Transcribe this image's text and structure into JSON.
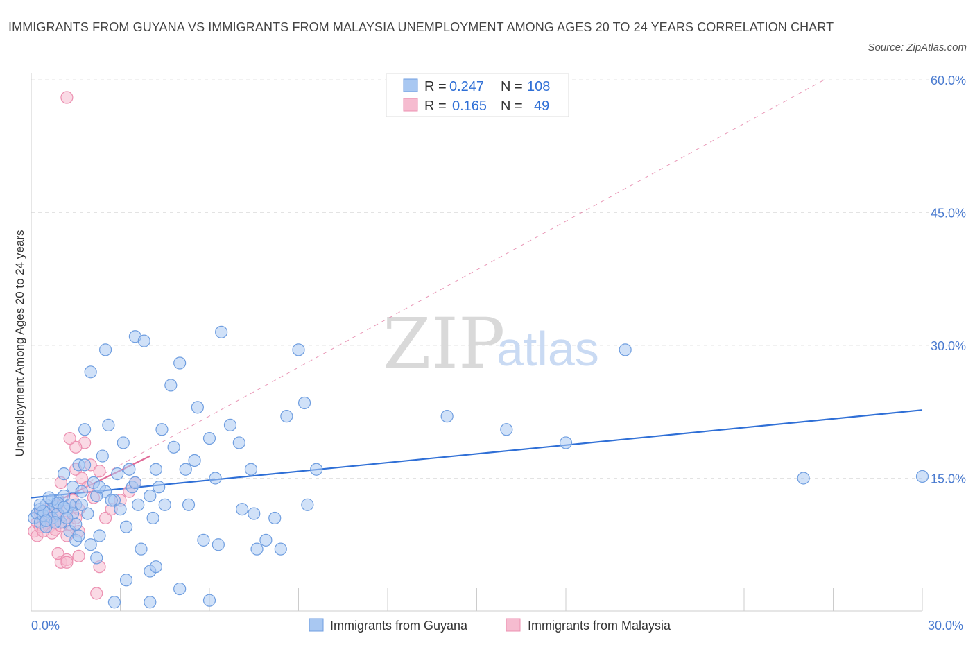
{
  "title": "IMMIGRANTS FROM GUYANA VS IMMIGRANTS FROM MALAYSIA UNEMPLOYMENT AMONG AGES 20 TO 24 YEARS CORRELATION CHART",
  "source": "Source: ZipAtlas.com",
  "watermark": {
    "zip": "ZIP",
    "atlas": "atlas"
  },
  "colors": {
    "guyana_fill": "#a9c8f2",
    "guyana_stroke": "#6f9ee0",
    "guyana_line": "#2f6fd6",
    "malaysia_fill": "#f6bcd0",
    "malaysia_stroke": "#ec8fb0",
    "malaysia_line": "#e06b98",
    "grid": "#e3e3e3",
    "accent": "#4a7bd0"
  },
  "legend": {
    "rows": [
      {
        "r_label": "R =",
        "r_value": "0.247",
        "n_label": "N =",
        "n_value": "108"
      },
      {
        "r_label": "R =",
        "r_value": "0.165",
        "n_label": "N =",
        "n_value": "49"
      }
    ]
  },
  "chart_data": {
    "type": "scatter",
    "title": "IMMIGRANTS FROM GUYANA VS IMMIGRANTS FROM MALAYSIA UNEMPLOYMENT AMONG AGES 20 TO 24 YEARS CORRELATION CHART",
    "xlabel": "",
    "ylabel": "Unemployment Among Ages 20 to 24 years",
    "xlim": [
      0,
      30
    ],
    "ylim": [
      0,
      60
    ],
    "x_tick_labels": [
      "0.0%",
      "30.0%"
    ],
    "y_ticks": [
      15,
      30,
      45,
      60
    ],
    "y_tick_labels": [
      "15.0%",
      "30.0%",
      "45.0%",
      "60.0%"
    ],
    "legend_position": "top-center",
    "series": [
      {
        "name": "Immigrants from Guyana",
        "r": 0.247,
        "n": 108,
        "trend": {
          "x0": 0,
          "y0": 12.8,
          "x1": 30,
          "y1": 22.7
        },
        "points": [
          [
            0.1,
            10.5
          ],
          [
            0.2,
            11.0
          ],
          [
            0.3,
            10.0
          ],
          [
            0.3,
            11.5
          ],
          [
            0.4,
            10.8
          ],
          [
            0.5,
            9.5
          ],
          [
            0.5,
            12.0
          ],
          [
            0.6,
            11.2
          ],
          [
            0.7,
            10.5
          ],
          [
            0.8,
            11.8
          ],
          [
            0.9,
            12.5
          ],
          [
            1.0,
            10.0
          ],
          [
            1.1,
            13.0
          ],
          [
            1.2,
            11.5
          ],
          [
            1.3,
            9.0
          ],
          [
            1.4,
            14.0
          ],
          [
            1.5,
            12.0
          ],
          [
            1.6,
            16.5
          ],
          [
            1.7,
            13.5
          ],
          [
            1.8,
            20.5
          ],
          [
            1.9,
            11.0
          ],
          [
            2.0,
            7.5
          ],
          [
            2.1,
            14.5
          ],
          [
            2.2,
            6.0
          ],
          [
            2.3,
            8.5
          ],
          [
            2.4,
            17.5
          ],
          [
            2.5,
            13.5
          ],
          [
            2.6,
            21.0
          ],
          [
            2.8,
            12.5
          ],
          [
            2.9,
            15.5
          ],
          [
            3.0,
            11.5
          ],
          [
            3.1,
            19.0
          ],
          [
            3.2,
            9.5
          ],
          [
            3.3,
            16.0
          ],
          [
            3.4,
            14.0
          ],
          [
            3.5,
            31.0
          ],
          [
            3.6,
            12.0
          ],
          [
            3.7,
            7.0
          ],
          [
            3.8,
            30.5
          ],
          [
            4.0,
            13.0
          ],
          [
            4.1,
            10.5
          ],
          [
            4.2,
            16.0
          ],
          [
            4.3,
            14.0
          ],
          [
            4.4,
            20.5
          ],
          [
            4.5,
            12.0
          ],
          [
            4.7,
            25.5
          ],
          [
            4.8,
            18.5
          ],
          [
            5.0,
            28.0
          ],
          [
            5.2,
            16.0
          ],
          [
            5.3,
            12.0
          ],
          [
            5.5,
            17.0
          ],
          [
            5.6,
            23.0
          ],
          [
            5.8,
            8.0
          ],
          [
            6.0,
            19.5
          ],
          [
            6.2,
            15.0
          ],
          [
            6.3,
            7.5
          ],
          [
            6.4,
            31.5
          ],
          [
            6.7,
            21.0
          ],
          [
            7.0,
            19.0
          ],
          [
            7.1,
            11.5
          ],
          [
            7.4,
            16.0
          ],
          [
            7.5,
            11.0
          ],
          [
            7.6,
            7.0
          ],
          [
            7.9,
            8.0
          ],
          [
            8.2,
            10.5
          ],
          [
            8.4,
            7.0
          ],
          [
            8.6,
            22.0
          ],
          [
            9.0,
            29.5
          ],
          [
            9.2,
            23.5
          ],
          [
            9.3,
            12.0
          ],
          [
            9.6,
            16.0
          ],
          [
            2.0,
            27.0
          ],
          [
            2.5,
            29.5
          ],
          [
            1.5,
            8.0
          ],
          [
            3.2,
            3.5
          ],
          [
            4.0,
            4.5
          ],
          [
            4.2,
            5.0
          ],
          [
            4.0,
            1.0
          ],
          [
            5.0,
            2.5
          ],
          [
            6.0,
            1.2
          ],
          [
            2.8,
            1.0
          ],
          [
            1.1,
            15.5
          ],
          [
            1.3,
            12.0
          ],
          [
            0.7,
            12.5
          ],
          [
            0.9,
            11.0
          ],
          [
            1.4,
            11.0
          ],
          [
            1.7,
            12.0
          ],
          [
            2.2,
            13.0
          ],
          [
            1.6,
            8.5
          ],
          [
            1.5,
            9.8
          ],
          [
            1.2,
            10.5
          ],
          [
            0.8,
            10.0
          ],
          [
            0.4,
            11.3
          ],
          [
            0.6,
            12.8
          ],
          [
            14.0,
            22.0
          ],
          [
            16.0,
            20.5
          ],
          [
            18.0,
            19.0
          ],
          [
            20.0,
            29.5
          ],
          [
            26.0,
            15.0
          ],
          [
            30.0,
            15.2
          ],
          [
            0.5,
            10.2
          ],
          [
            0.9,
            12.2
          ],
          [
            1.1,
            11.7
          ],
          [
            1.8,
            16.5
          ],
          [
            2.3,
            14.0
          ],
          [
            2.7,
            12.5
          ],
          [
            3.5,
            14.5
          ],
          [
            0.3,
            12.0
          ]
        ]
      },
      {
        "name": "Immigrants from Malaysia",
        "r": 0.165,
        "n": 49,
        "trend": {
          "x0": 0,
          "y0": 11.0,
          "x1": 4,
          "y1": 17.5
        },
        "dashed_trend": {
          "x0": 0,
          "y0": 11.0,
          "x1": 26.7,
          "y1": 60.0
        },
        "points": [
          [
            0.1,
            9.0
          ],
          [
            0.2,
            10.0
          ],
          [
            0.2,
            8.5
          ],
          [
            0.3,
            9.5
          ],
          [
            0.3,
            11.0
          ],
          [
            0.4,
            10.5
          ],
          [
            0.4,
            9.0
          ],
          [
            0.5,
            10.0
          ],
          [
            0.5,
            11.5
          ],
          [
            0.6,
            9.5
          ],
          [
            0.6,
            10.5
          ],
          [
            0.7,
            8.8
          ],
          [
            0.7,
            10.2
          ],
          [
            0.8,
            11.0
          ],
          [
            0.8,
            9.2
          ],
          [
            0.9,
            12.0
          ],
          [
            0.9,
            10.8
          ],
          [
            1.0,
            9.6
          ],
          [
            1.0,
            14.5
          ],
          [
            1.1,
            10.0
          ],
          [
            1.2,
            8.5
          ],
          [
            1.2,
            11.3
          ],
          [
            1.3,
            9.8
          ],
          [
            1.4,
            12.5
          ],
          [
            1.5,
            10.5
          ],
          [
            1.5,
            16.0
          ],
          [
            1.6,
            9.0
          ],
          [
            1.6,
            11.5
          ],
          [
            1.7,
            15.0
          ],
          [
            1.8,
            19.0
          ],
          [
            1.9,
            14.0
          ],
          [
            2.0,
            16.5
          ],
          [
            2.1,
            12.8
          ],
          [
            2.3,
            15.8
          ],
          [
            2.5,
            10.5
          ],
          [
            2.7,
            11.5
          ],
          [
            3.0,
            12.5
          ],
          [
            3.3,
            13.5
          ],
          [
            3.5,
            14.5
          ],
          [
            1.5,
            18.5
          ],
          [
            1.3,
            19.5
          ],
          [
            1.0,
            5.5
          ],
          [
            0.9,
            6.5
          ],
          [
            1.2,
            5.8
          ],
          [
            1.6,
            6.2
          ],
          [
            2.2,
            2.0
          ],
          [
            2.3,
            5.0
          ],
          [
            1.2,
            5.5
          ],
          [
            1.2,
            58.0
          ]
        ]
      }
    ]
  },
  "bottom_legend": [
    {
      "label": "Immigrants from Guyana"
    },
    {
      "label": "Immigrants from Malaysia"
    }
  ]
}
